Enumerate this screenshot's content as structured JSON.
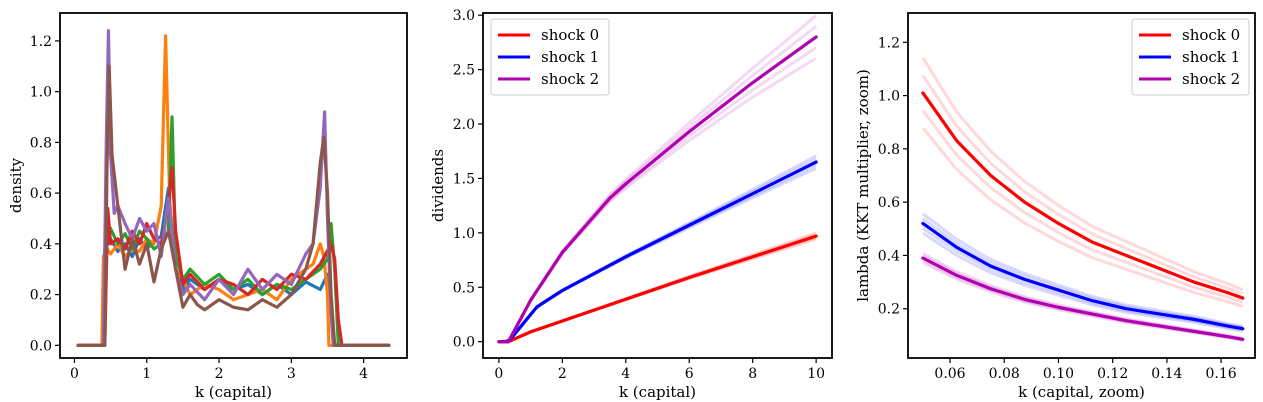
{
  "chart_data": [
    {
      "type": "line",
      "xlabel": "k (capital)",
      "ylabel": "density",
      "xlim": [
        -0.2,
        4.6
      ],
      "ylim": [
        -0.05,
        1.31
      ],
      "xticks": [
        0,
        1,
        2,
        3,
        4
      ],
      "xtick_labels": [
        "0",
        "1",
        "2",
        "3",
        "4"
      ],
      "yticks": [
        0.0,
        0.2,
        0.4,
        0.6,
        0.8,
        1.0,
        1.2
      ],
      "ytick_labels": [
        "0.0",
        "0.2",
        "0.4",
        "0.6",
        "0.8",
        "1.0",
        "1.2"
      ],
      "grid": false,
      "series": [
        {
          "color": "#1f77b4",
          "x": [
            0.05,
            0.38,
            0.42,
            0.5,
            0.6,
            0.7,
            0.8,
            0.9,
            1.0,
            1.1,
            1.2,
            1.3,
            1.4,
            1.5,
            1.6,
            1.8,
            2.0,
            2.2,
            2.4,
            2.6,
            2.8,
            3.0,
            3.2,
            3.4,
            3.5,
            3.55,
            3.6,
            3.7,
            4.35
          ],
          "y": [
            0,
            0,
            0.38,
            0.42,
            0.37,
            0.4,
            0.35,
            0.42,
            0.38,
            0.41,
            0.43,
            0.62,
            0.3,
            0.22,
            0.26,
            0.22,
            0.26,
            0.22,
            0.24,
            0.2,
            0.24,
            0.2,
            0.25,
            0.22,
            0.28,
            0.15,
            0,
            0,
            0
          ]
        },
        {
          "color": "#ff7f0e",
          "x": [
            0.05,
            0.38,
            0.4,
            0.45,
            0.5,
            0.6,
            0.7,
            0.8,
            0.9,
            1.0,
            1.1,
            1.2,
            1.26,
            1.32,
            1.4,
            1.5,
            1.6,
            1.8,
            2.0,
            2.2,
            2.4,
            2.6,
            2.8,
            3.0,
            3.2,
            3.3,
            3.4,
            3.45,
            3.5,
            3.52,
            3.6,
            4.35
          ],
          "y": [
            0,
            0,
            0.35,
            0.38,
            0.36,
            0.4,
            0.35,
            0.38,
            0.37,
            0.42,
            0.4,
            0.55,
            1.22,
            0.55,
            0.3,
            0.26,
            0.2,
            0.24,
            0.22,
            0.18,
            0.2,
            0.22,
            0.18,
            0.26,
            0.3,
            0.32,
            0.4,
            0.35,
            0.2,
            0,
            0,
            0
          ]
        },
        {
          "color": "#2ca02c",
          "x": [
            0.05,
            0.4,
            0.45,
            0.5,
            0.6,
            0.7,
            0.8,
            0.9,
            1.0,
            1.1,
            1.2,
            1.3,
            1.35,
            1.4,
            1.5,
            1.6,
            1.8,
            2.0,
            2.2,
            2.4,
            2.6,
            2.8,
            3.0,
            3.2,
            3.4,
            3.5,
            3.55,
            3.6,
            3.65,
            4.35
          ],
          "y": [
            0,
            0,
            0.48,
            0.46,
            0.4,
            0.44,
            0.38,
            0.45,
            0.42,
            0.38,
            0.4,
            0.45,
            0.9,
            0.35,
            0.26,
            0.3,
            0.24,
            0.28,
            0.22,
            0.26,
            0.2,
            0.24,
            0.22,
            0.26,
            0.3,
            0.34,
            0.48,
            0.3,
            0,
            0
          ]
        },
        {
          "color": "#d62728",
          "x": [
            0.05,
            0.42,
            0.46,
            0.5,
            0.6,
            0.7,
            0.8,
            0.9,
            1.0,
            1.1,
            1.2,
            1.3,
            1.35,
            1.4,
            1.5,
            1.6,
            1.8,
            2.0,
            2.2,
            2.4,
            2.6,
            2.8,
            3.0,
            3.2,
            3.4,
            3.55,
            3.6,
            3.65,
            3.7,
            4.35
          ],
          "y": [
            0,
            0,
            0.54,
            0.4,
            0.42,
            0.38,
            0.45,
            0.4,
            0.48,
            0.42,
            0.4,
            0.55,
            0.7,
            0.45,
            0.24,
            0.28,
            0.22,
            0.26,
            0.24,
            0.2,
            0.26,
            0.22,
            0.28,
            0.26,
            0.32,
            0.4,
            0.34,
            0.1,
            0,
            0
          ]
        },
        {
          "color": "#9467bd",
          "x": [
            0.05,
            0.4,
            0.44,
            0.47,
            0.5,
            0.55,
            0.6,
            0.7,
            0.8,
            0.9,
            1.0,
            1.1,
            1.2,
            1.3,
            1.4,
            1.5,
            1.6,
            1.8,
            2.0,
            2.2,
            2.4,
            2.6,
            2.8,
            3.0,
            3.2,
            3.3,
            3.4,
            3.46,
            3.5,
            3.55,
            3.58,
            4.35
          ],
          "y": [
            0,
            0,
            0.8,
            1.24,
            0.75,
            0.52,
            0.55,
            0.48,
            0.42,
            0.5,
            0.45,
            0.48,
            0.35,
            0.58,
            0.3,
            0.2,
            0.24,
            0.18,
            0.26,
            0.2,
            0.3,
            0.22,
            0.28,
            0.24,
            0.36,
            0.4,
            0.62,
            0.92,
            0.5,
            0.12,
            0,
            0
          ]
        },
        {
          "color": "#8c564b",
          "x": [
            0.05,
            0.42,
            0.45,
            0.48,
            0.52,
            0.6,
            0.7,
            0.8,
            0.9,
            1.0,
            1.1,
            1.2,
            1.3,
            1.4,
            1.5,
            1.6,
            1.7,
            1.8,
            2.0,
            2.2,
            2.4,
            2.6,
            2.8,
            3.0,
            3.2,
            3.3,
            3.4,
            3.45,
            3.5,
            3.55,
            3.6,
            4.35
          ],
          "y": [
            0,
            0,
            0.7,
            1.1,
            0.75,
            0.55,
            0.3,
            0.42,
            0.32,
            0.4,
            0.25,
            0.38,
            0.45,
            0.3,
            0.15,
            0.2,
            0.16,
            0.14,
            0.18,
            0.15,
            0.14,
            0.18,
            0.15,
            0.2,
            0.3,
            0.4,
            0.72,
            0.82,
            0.6,
            0.2,
            0,
            0
          ]
        }
      ]
    },
    {
      "type": "line",
      "xlabel": "k (capital)",
      "ylabel": "dividends",
      "xlim": [
        -0.5,
        10.5
      ],
      "ylim": [
        -0.15,
        3.02
      ],
      "xticks": [
        0,
        2,
        4,
        6,
        8,
        10
      ],
      "xtick_labels": [
        "0",
        "2",
        "4",
        "6",
        "8",
        "10"
      ],
      "yticks": [
        0.0,
        0.5,
        1.0,
        1.5,
        2.0,
        2.5,
        3.0
      ],
      "ytick_labels": [
        "0.0",
        "0.5",
        "1.0",
        "1.5",
        "2.0",
        "2.5",
        "3.0"
      ],
      "grid": false,
      "legend_position": "upper-left",
      "series": [
        {
          "name": "shock 0",
          "color": "#ff0000",
          "x": [
            0,
            0.3,
            1,
            2,
            4,
            6,
            8,
            10
          ],
          "y": [
            0,
            0,
            0.09,
            0.19,
            0.39,
            0.59,
            0.78,
            0.97
          ]
        },
        {
          "name": "shock 1",
          "color": "#0000ff",
          "x": [
            0,
            0.3,
            1.2,
            2,
            4,
            6,
            8,
            10
          ],
          "y": [
            0,
            0,
            0.32,
            0.47,
            0.78,
            1.07,
            1.36,
            1.65
          ]
        },
        {
          "name": "shock 2",
          "color": "#b000b0",
          "x": [
            0,
            0.3,
            1,
            2,
            3.5,
            4,
            6,
            8,
            10
          ],
          "y": [
            0,
            0,
            0.38,
            0.82,
            1.32,
            1.45,
            1.93,
            2.38,
            2.8
          ]
        }
      ]
    },
    {
      "type": "line",
      "xlabel": "k (capital, zoom)",
      "ylabel": "lambda (KKT multiplier, zoom)",
      "xlim": [
        0.0445,
        0.1725
      ],
      "ylim": [
        0.015,
        1.31
      ],
      "xticks": [
        0.06,
        0.08,
        0.1,
        0.12,
        0.14,
        0.16
      ],
      "xtick_labels": [
        "0.06",
        "0.08",
        "0.10",
        "0.12",
        "0.14",
        "0.16"
      ],
      "yticks": [
        0.2,
        0.4,
        0.6,
        0.8,
        1.0,
        1.2
      ],
      "ytick_labels": [
        "0.2",
        "0.4",
        "0.6",
        "0.8",
        "1.0",
        "1.2"
      ],
      "grid": false,
      "legend_position": "upper-right",
      "series": [
        {
          "name": "shock 0",
          "color": "#ff0000",
          "x": [
            0.05,
            0.0625,
            0.075,
            0.0875,
            0.1,
            0.1125,
            0.125,
            0.1375,
            0.15,
            0.1625,
            0.168
          ],
          "y": [
            1.01,
            0.83,
            0.7,
            0.6,
            0.52,
            0.45,
            0.4,
            0.35,
            0.3,
            0.26,
            0.24
          ]
        },
        {
          "name": "shock 1",
          "color": "#0000ff",
          "x": [
            0.05,
            0.0625,
            0.075,
            0.0875,
            0.1,
            0.1125,
            0.125,
            0.1375,
            0.15,
            0.1625,
            0.168
          ],
          "y": [
            0.52,
            0.43,
            0.36,
            0.31,
            0.27,
            0.23,
            0.2,
            0.18,
            0.16,
            0.135,
            0.125
          ]
        },
        {
          "name": "shock 2",
          "color": "#b000b0",
          "x": [
            0.05,
            0.0625,
            0.075,
            0.0875,
            0.1,
            0.1125,
            0.125,
            0.1375,
            0.15,
            0.1625,
            0.168
          ],
          "y": [
            0.39,
            0.325,
            0.275,
            0.235,
            0.205,
            0.18,
            0.155,
            0.135,
            0.115,
            0.095,
            0.085
          ]
        }
      ]
    }
  ]
}
